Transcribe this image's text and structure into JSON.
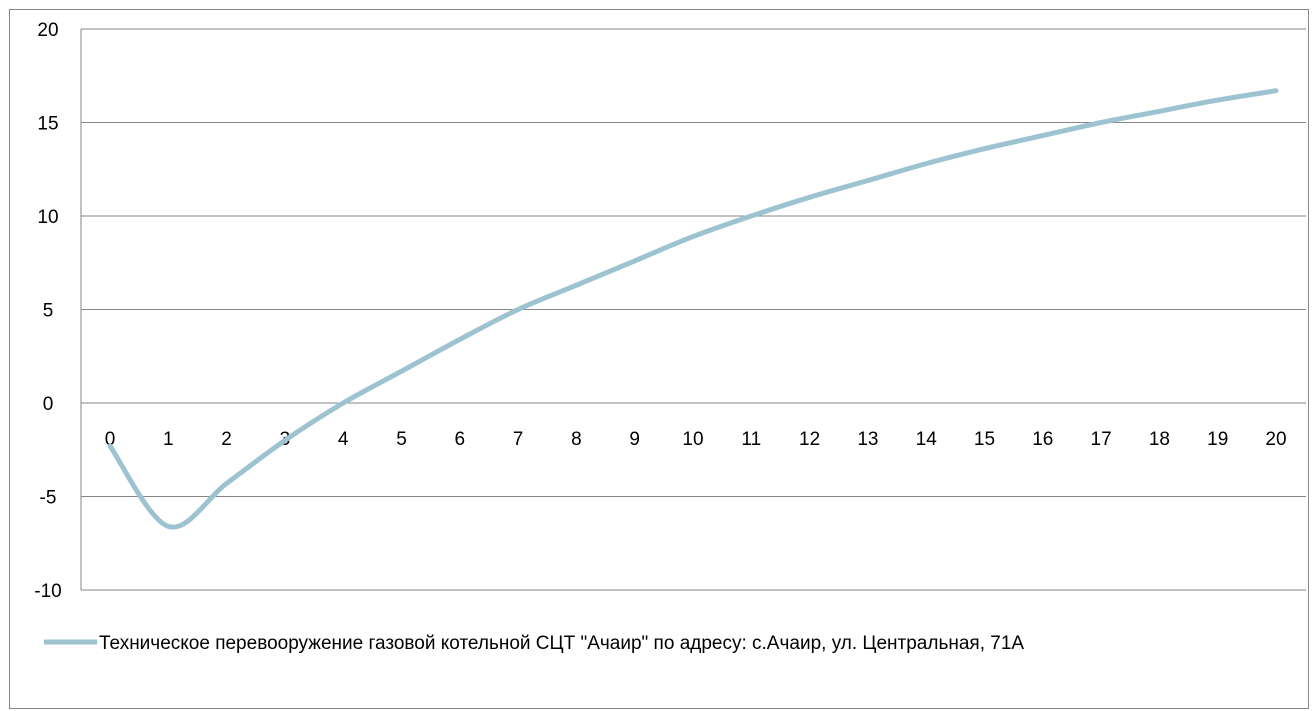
{
  "chart_data": {
    "type": "line",
    "title": "",
    "xlabel": "",
    "ylabel": "",
    "x": [
      0,
      1,
      2,
      3,
      4,
      5,
      6,
      7,
      8,
      9,
      10,
      11,
      12,
      13,
      14,
      15,
      16,
      17,
      18,
      19,
      20
    ],
    "x_tick_labels": [
      "0",
      "1",
      "2",
      "3",
      "4",
      "5",
      "6",
      "7",
      "8",
      "9",
      "10",
      "11",
      "12",
      "13",
      "14",
      "15",
      "16",
      "17",
      "18",
      "19",
      "20"
    ],
    "y_ticks": [
      20,
      15,
      10,
      5,
      0,
      -5,
      -10
    ],
    "y_tick_labels": [
      "20",
      "15",
      "10",
      "5",
      "0",
      "-5",
      "-10"
    ],
    "ylim": [
      -10,
      20
    ],
    "grid": "horizontal",
    "legend_position": "bottom",
    "series": [
      {
        "name": "Техническое перевооружение газовой котельной СЦТ \"Ачаир\" по адресу: с.Ачаир, ул. Центральная, 71А",
        "color": "#9dc3d1",
        "values": [
          -2.3,
          -6.6,
          -4.3,
          -2.0,
          0.0,
          1.7,
          3.4,
          5.0,
          6.3,
          7.6,
          8.9,
          10.0,
          11.0,
          11.9,
          12.8,
          13.6,
          14.3,
          15.0,
          15.6,
          16.2,
          16.7
        ]
      }
    ]
  }
}
